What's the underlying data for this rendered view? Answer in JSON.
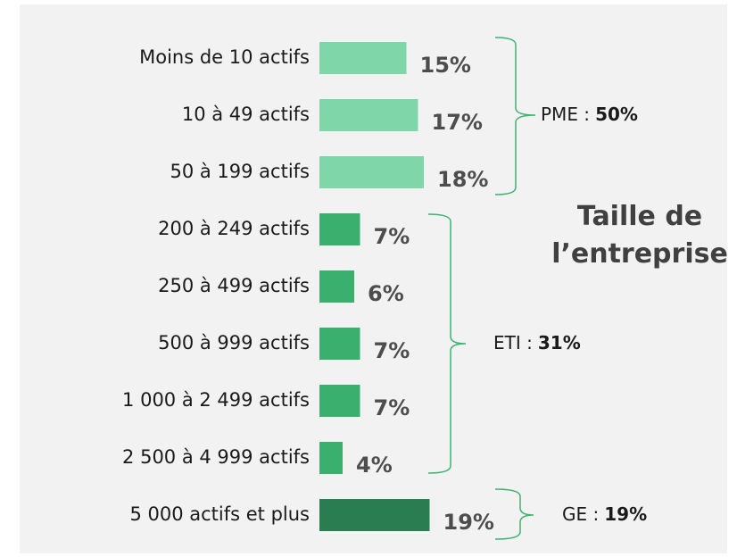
{
  "chart_data": {
    "type": "grouped-bar",
    "title": "Taille de l’entreprise",
    "groups": [
      {
        "label": "PME :",
        "total": 50,
        "total_label": "50%",
        "color": "#7fd6a9",
        "categories": [
          "Moins de 10 actifs",
          "10 à 49 actifs",
          "50 à 199 actifs"
        ],
        "values": [
          15,
          17,
          18
        ],
        "value_labels": [
          "15%",
          "17%",
          "18%"
        ]
      },
      {
        "label": "ETI :",
        "total": 31,
        "total_label": "31%",
        "color": "#3aaf6e",
        "categories": [
          "200 à 249 actifs",
          "250 à 499 actifs",
          "500 à 999 actifs",
          "1 000 à 2 499 actifs",
          "2 500 à 4 999 actifs"
        ],
        "values": [
          7,
          6,
          7,
          7,
          4
        ],
        "value_labels": [
          "7%",
          "6%",
          "7%",
          "7%",
          "4%"
        ]
      },
      {
        "label": "GE :",
        "total": 19,
        "total_label": "19%",
        "color": "#2a7d51",
        "categories": [
          "5 000 actifs et plus"
        ],
        "values": [
          19
        ],
        "value_labels": [
          "19%"
        ]
      }
    ],
    "brace_color": "#3cb371"
  }
}
